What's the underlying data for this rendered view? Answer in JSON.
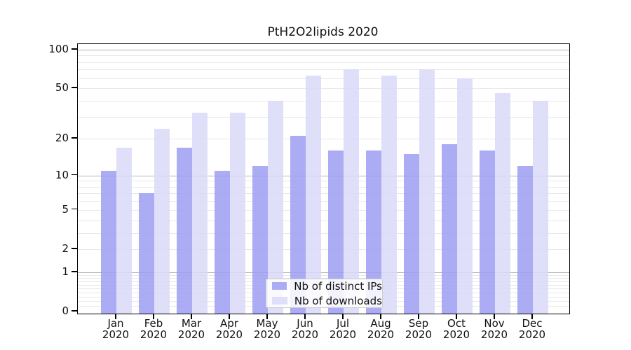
{
  "chart_data": {
    "type": "bar",
    "title": "PtH2O2lipids 2020",
    "categories": [
      "Jan 2020",
      "Feb 2020",
      "Mar 2020",
      "Apr 2020",
      "May 2020",
      "Jun 2020",
      "Jul 2020",
      "Aug 2020",
      "Sep 2020",
      "Oct 2020",
      "Nov 2020",
      "Dec 2020"
    ],
    "series": [
      {
        "name": "Nb of distinct IPs",
        "color": "#9d9df2",
        "values": [
          11,
          7,
          17,
          11,
          12,
          21,
          16,
          16,
          15,
          18,
          16,
          12
        ]
      },
      {
        "name": "Nb of downloads",
        "color": "#d9d9f8",
        "values": [
          17,
          24,
          32,
          32,
          40,
          63,
          70,
          63,
          70,
          60,
          46,
          40
        ]
      }
    ],
    "yscale": "log10(1+y)",
    "ylim": [
      0,
      110
    ],
    "yticks": [
      0,
      1,
      2,
      5,
      10,
      20,
      50,
      100
    ],
    "major_gridlines": [
      1,
      10,
      100
    ],
    "grid": true,
    "legend_position": "lower center",
    "colors": {
      "major_grid": "#b3b3b3",
      "minor_grid": "#e8e8e8",
      "axis": "#000000",
      "text": "#111111"
    }
  }
}
